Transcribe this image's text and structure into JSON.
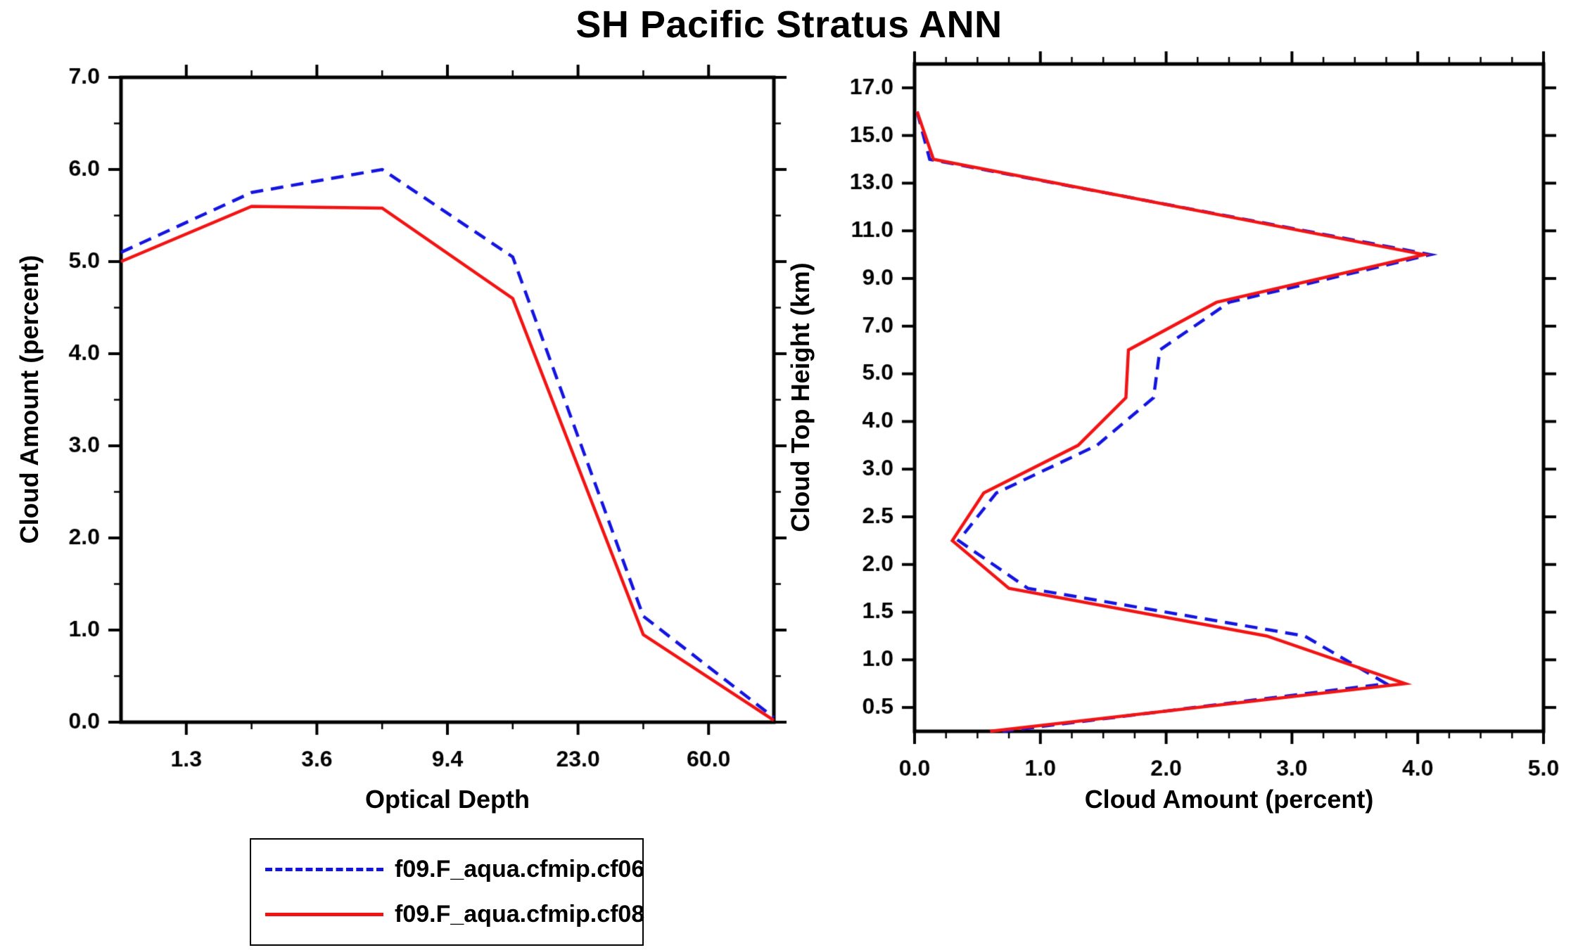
{
  "title": "SH Pacific Stratus ANN",
  "colors": {
    "series_blue": "#1414E0",
    "series_red": "#F21414",
    "axis": "#000000",
    "background": "#FFFFFF"
  },
  "legend": {
    "items": [
      {
        "label": "f09.F_aqua.cfmip.cf06",
        "color": "#1414E0",
        "style": "dashed"
      },
      {
        "label": "f09.F_aqua.cfmip.cf08",
        "color": "#F21414",
        "style": "solid"
      }
    ]
  },
  "chart_data": [
    {
      "type": "line",
      "panel": "left",
      "xlabel": "Optical Depth",
      "ylabel": "Cloud Amount (percent)",
      "x_tick_labels": [
        "1.3",
        "3.6",
        "9.4",
        "23.0",
        "60.0"
      ],
      "y_tick_labels": [
        "0.0",
        "1.0",
        "2.0",
        "3.0",
        "4.0",
        "5.0",
        "6.0",
        "7.0"
      ],
      "ylim": [
        0.0,
        7.0
      ],
      "layout_hint": "6 data points evenly spaced across optical-depth bins; tick labels sit midway between points; grid off; legend below plot",
      "series": [
        {
          "name": "f09.F_aqua.cfmip.cf06",
          "color": "#1414E0",
          "style": "dashed",
          "values": [
            5.1,
            5.75,
            6.0,
            5.05,
            1.15,
            0.05
          ]
        },
        {
          "name": "f09.F_aqua.cfmip.cf08",
          "color": "#F21414",
          "style": "solid",
          "values": [
            5.0,
            5.6,
            5.58,
            4.6,
            0.95,
            0.02
          ]
        }
      ]
    },
    {
      "type": "line",
      "panel": "right",
      "xlabel": "Cloud Amount (percent)",
      "ylabel": "Cloud Top Height (km)",
      "x_tick_labels": [
        "0.0",
        "1.0",
        "2.0",
        "3.0",
        "4.0",
        "5.0"
      ],
      "xlim": [
        0.0,
        5.0
      ],
      "y_tick_labels": [
        "0.5",
        "1.0",
        "1.5",
        "2.0",
        "2.5",
        "3.0",
        "4.0",
        "5.0",
        "7.0",
        "9.0",
        "11.0",
        "13.0",
        "15.0",
        "17.0"
      ],
      "layout_hint": "y axis is an evenly spaced category axis of height levels; data points lie midway between adjacent tick levels; grid off",
      "heights_km": [
        16.0,
        14.0,
        10.0,
        8.0,
        6.0,
        4.5,
        3.5,
        2.75,
        2.25,
        1.75,
        1.25,
        0.75,
        0.25
      ],
      "series": [
        {
          "name": "f09.F_aqua.cfmip.cf06",
          "color": "#1414E0",
          "style": "dashed",
          "values": [
            0.02,
            0.12,
            4.1,
            2.5,
            1.95,
            1.9,
            1.45,
            0.65,
            0.35,
            0.9,
            3.1,
            3.75,
            0.7
          ]
        },
        {
          "name": "f09.F_aqua.cfmip.cf08",
          "color": "#F21414",
          "style": "solid",
          "values": [
            0.02,
            0.15,
            4.05,
            2.4,
            1.7,
            1.68,
            1.3,
            0.55,
            0.3,
            0.75,
            2.8,
            3.9,
            0.6
          ]
        }
      ]
    }
  ]
}
